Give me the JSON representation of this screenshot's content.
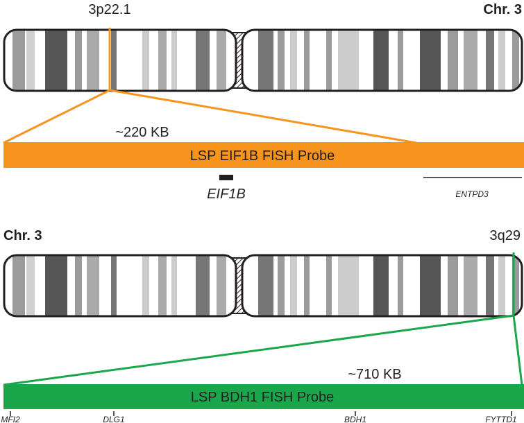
{
  "panels": [
    {
      "chromosome": "Chr. 3",
      "band": "3p22.1",
      "size": "~220 KB",
      "probe": "LSP EIF1B FISH Probe",
      "genes": [
        "EIF1B",
        "ENTPD3"
      ]
    },
    {
      "chromosome": "Chr. 3",
      "band": "3q29",
      "size": "~710 KB",
      "probe": "LSP BDH1 FISH Probe",
      "genes": [
        "MFI2",
        "DLG1",
        "BDH1",
        "FYTTD1"
      ]
    }
  ]
}
